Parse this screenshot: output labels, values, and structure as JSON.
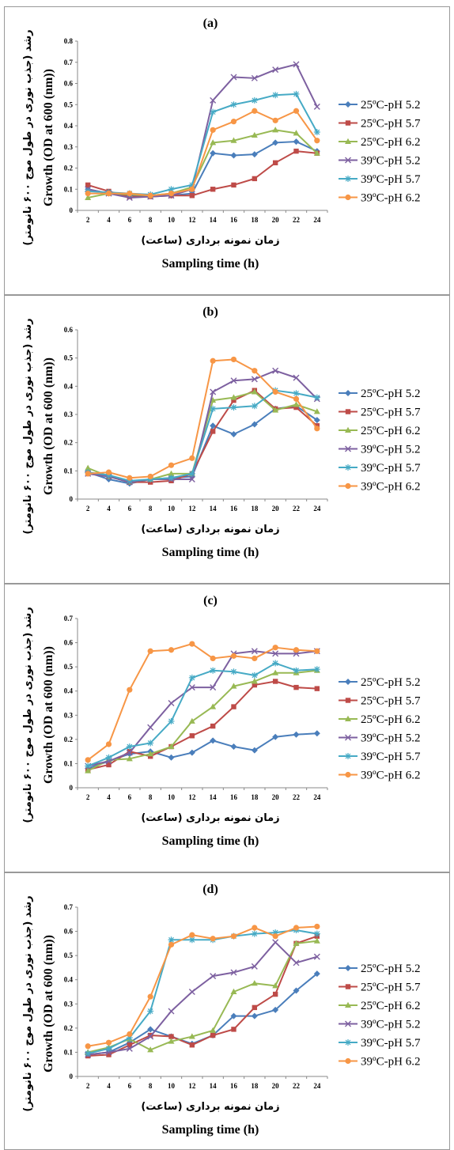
{
  "chart_data": [
    {
      "type": "line",
      "title": "(a)",
      "xlabel_fa": "زمان نمونه برداری (ساعت)",
      "xlabel": "Sampling time (h)",
      "ylabel_fa": "رشد (جذب نوری در طول موج ۶۰۰ نانومتر)",
      "ylabel": "Growth (OD at 600 (nm))",
      "x": [
        2,
        4,
        6,
        8,
        10,
        12,
        14,
        16,
        18,
        20,
        22,
        24
      ],
      "ylim": [
        0,
        0.8
      ],
      "yticks": [
        0,
        0.1,
        0.2,
        0.3,
        0.4,
        0.5,
        0.6,
        0.7,
        0.8
      ],
      "ytick_labels": [
        "0",
        "0.1",
        "0.2",
        "0.3",
        "0.4",
        "0.5",
        "0.6",
        "0.7",
        "0.8"
      ],
      "legend_position": "right",
      "series": [
        {
          "name": "25ºC-pH 5.2",
          "values": [
            0.1,
            0.08,
            0.07,
            0.07,
            0.07,
            0.08,
            0.27,
            0.26,
            0.265,
            0.32,
            0.325,
            0.28
          ]
        },
        {
          "name": "25ºC-pH 5.7",
          "values": [
            0.12,
            0.09,
            0.065,
            0.065,
            0.07,
            0.07,
            0.1,
            0.12,
            0.15,
            0.225,
            0.28,
            0.27
          ]
        },
        {
          "name": "25ºC-pH 6.2",
          "values": [
            0.06,
            0.08,
            0.075,
            0.07,
            0.08,
            0.11,
            0.32,
            0.33,
            0.355,
            0.38,
            0.365,
            0.27
          ]
        },
        {
          "name": "39ºC-pH 5.2",
          "values": [
            0.1,
            0.08,
            0.06,
            0.065,
            0.07,
            0.1,
            0.52,
            0.63,
            0.625,
            0.665,
            0.69,
            0.49
          ]
        },
        {
          "name": "39ºC-pH 5.7",
          "values": [
            0.09,
            0.085,
            0.08,
            0.075,
            0.1,
            0.12,
            0.465,
            0.5,
            0.52,
            0.545,
            0.55,
            0.37
          ]
        },
        {
          "name": "39ºC-pH 6.2",
          "values": [
            0.08,
            0.08,
            0.08,
            0.07,
            0.08,
            0.1,
            0.38,
            0.42,
            0.47,
            0.425,
            0.47,
            0.33
          ]
        }
      ]
    },
    {
      "type": "line",
      "title": "(b)",
      "xlabel_fa": "زمان نمونه برداری (ساعت)",
      "xlabel": "Sampling time (h)",
      "ylabel_fa": "رشد (جذب نوری در طول موج ۶۰۰ نانومتر)",
      "ylabel": "Growth (OD at 600 (nm))",
      "x": [
        2,
        4,
        6,
        8,
        10,
        12,
        14,
        16,
        18,
        20,
        22,
        24
      ],
      "ylim": [
        0,
        0.6
      ],
      "yticks": [
        0,
        0.1,
        0.2,
        0.3,
        0.4,
        0.5,
        0.6
      ],
      "ytick_labels": [
        "0",
        "0.1",
        "0.2",
        "0.3",
        "0.4",
        "0.5",
        "0.6"
      ],
      "legend_position": "right",
      "series": [
        {
          "name": "25ºC-pH 5.2",
          "values": [
            0.095,
            0.07,
            0.055,
            0.07,
            0.075,
            0.08,
            0.26,
            0.23,
            0.265,
            0.32,
            0.33,
            0.28
          ]
        },
        {
          "name": "25ºC-pH 5.7",
          "values": [
            0.09,
            0.08,
            0.06,
            0.06,
            0.065,
            0.09,
            0.24,
            0.35,
            0.385,
            0.32,
            0.325,
            0.26
          ]
        },
        {
          "name": "25ºC-pH 6.2",
          "values": [
            0.11,
            0.08,
            0.06,
            0.07,
            0.09,
            0.09,
            0.35,
            0.36,
            0.38,
            0.315,
            0.335,
            0.31
          ]
        },
        {
          "name": "39ºC-pH 5.2",
          "values": [
            0.09,
            0.08,
            0.06,
            0.07,
            0.07,
            0.07,
            0.38,
            0.42,
            0.425,
            0.455,
            0.43,
            0.355
          ]
        },
        {
          "name": "39ºC-pH 5.7",
          "values": [
            0.095,
            0.085,
            0.065,
            0.07,
            0.075,
            0.09,
            0.32,
            0.325,
            0.33,
            0.385,
            0.375,
            0.36
          ]
        },
        {
          "name": "39ºC-pH 6.2",
          "values": [
            0.09,
            0.095,
            0.075,
            0.08,
            0.12,
            0.145,
            0.49,
            0.495,
            0.455,
            0.38,
            0.355,
            0.25
          ]
        }
      ]
    },
    {
      "type": "line",
      "title": "(c)",
      "xlabel_fa": "زمان نمونه برداری (ساعت)",
      "xlabel": "Sampling time (h)",
      "ylabel_fa": "رشد (جذب نوری در طول موج ۶۰۰ نانومتر)",
      "ylabel": "Growth (OD at 600 (nm))",
      "x": [
        2,
        4,
        6,
        8,
        10,
        12,
        14,
        16,
        18,
        20,
        22,
        24
      ],
      "ylim": [
        0,
        0.7
      ],
      "yticks": [
        0,
        0.1,
        0.2,
        0.3,
        0.4,
        0.5,
        0.6,
        0.7
      ],
      "ytick_labels": [
        "0",
        "0.1",
        "0.2",
        "0.3",
        "0.4",
        "0.5",
        "0.6",
        "0.7"
      ],
      "legend_position": "right",
      "series": [
        {
          "name": "25ºC-pH 5.2",
          "values": [
            0.08,
            0.11,
            0.14,
            0.15,
            0.125,
            0.145,
            0.195,
            0.17,
            0.155,
            0.21,
            0.22,
            0.225
          ]
        },
        {
          "name": "25ºC-pH 5.7",
          "values": [
            0.075,
            0.095,
            0.15,
            0.13,
            0.17,
            0.215,
            0.255,
            0.335,
            0.425,
            0.44,
            0.415,
            0.41
          ]
        },
        {
          "name": "25ºC-pH 6.2",
          "values": [
            0.07,
            0.115,
            0.12,
            0.14,
            0.17,
            0.275,
            0.335,
            0.42,
            0.44,
            0.475,
            0.475,
            0.485
          ]
        },
        {
          "name": "39ºC-pH 5.2",
          "values": [
            0.09,
            0.11,
            0.145,
            0.25,
            0.35,
            0.415,
            0.415,
            0.555,
            0.565,
            0.555,
            0.555,
            0.565
          ]
        },
        {
          "name": "39ºC-pH 5.7",
          "values": [
            0.09,
            0.125,
            0.17,
            0.185,
            0.275,
            0.455,
            0.485,
            0.48,
            0.465,
            0.515,
            0.485,
            0.49
          ]
        },
        {
          "name": "39ºC-pH 6.2",
          "values": [
            0.115,
            0.18,
            0.405,
            0.565,
            0.57,
            0.595,
            0.535,
            0.545,
            0.535,
            0.58,
            0.57,
            0.565
          ]
        }
      ]
    },
    {
      "type": "line",
      "title": "(d)",
      "xlabel_fa": "زمان نمونه برداری (ساعت)",
      "xlabel": "Sampling time (h)",
      "ylabel_fa": "رشد (جذب نوری در طول موج ۶۰۰ نانومتر)",
      "ylabel": "Growth (OD at 600 (nm))",
      "x": [
        2,
        4,
        6,
        8,
        10,
        12,
        14,
        16,
        18,
        20,
        22,
        24
      ],
      "ylim": [
        0,
        0.7
      ],
      "yticks": [
        0,
        0.1,
        0.2,
        0.3,
        0.4,
        0.5,
        0.6,
        0.7
      ],
      "ytick_labels": [
        "0",
        "0.1",
        "0.2",
        "0.3",
        "0.4",
        "0.5",
        "0.6",
        "0.7"
      ],
      "legend_position": "right",
      "series": [
        {
          "name": "25ºC-pH 5.2",
          "values": [
            0.09,
            0.1,
            0.14,
            0.195,
            0.165,
            0.135,
            0.17,
            0.25,
            0.25,
            0.275,
            0.355,
            0.425
          ]
        },
        {
          "name": "25ºC-pH 5.7",
          "values": [
            0.085,
            0.09,
            0.13,
            0.17,
            0.165,
            0.13,
            0.17,
            0.195,
            0.285,
            0.34,
            0.55,
            0.58
          ]
        },
        {
          "name": "25ºC-pH 6.2",
          "values": [
            0.1,
            0.12,
            0.155,
            0.11,
            0.145,
            0.165,
            0.19,
            0.35,
            0.385,
            0.375,
            0.55,
            0.56
          ]
        },
        {
          "name": "39ºC-pH 5.2",
          "values": [
            0.09,
            0.1,
            0.115,
            0.165,
            0.27,
            0.35,
            0.415,
            0.43,
            0.455,
            0.555,
            0.47,
            0.495
          ]
        },
        {
          "name": "39ºC-pH 5.7",
          "values": [
            0.095,
            0.115,
            0.16,
            0.27,
            0.565,
            0.565,
            0.565,
            0.58,
            0.59,
            0.595,
            0.605,
            0.59
          ]
        },
        {
          "name": "39ºC-pH 6.2",
          "values": [
            0.125,
            0.14,
            0.175,
            0.33,
            0.545,
            0.585,
            0.57,
            0.58,
            0.615,
            0.58,
            0.615,
            0.62
          ]
        }
      ]
    }
  ],
  "series_colors": [
    "#4A7EBB",
    "#BE4B48",
    "#98B954",
    "#7D60A0",
    "#46AAC5",
    "#F79646"
  ],
  "series_markers": [
    "diamond",
    "square",
    "triangle",
    "x",
    "star",
    "circle"
  ]
}
